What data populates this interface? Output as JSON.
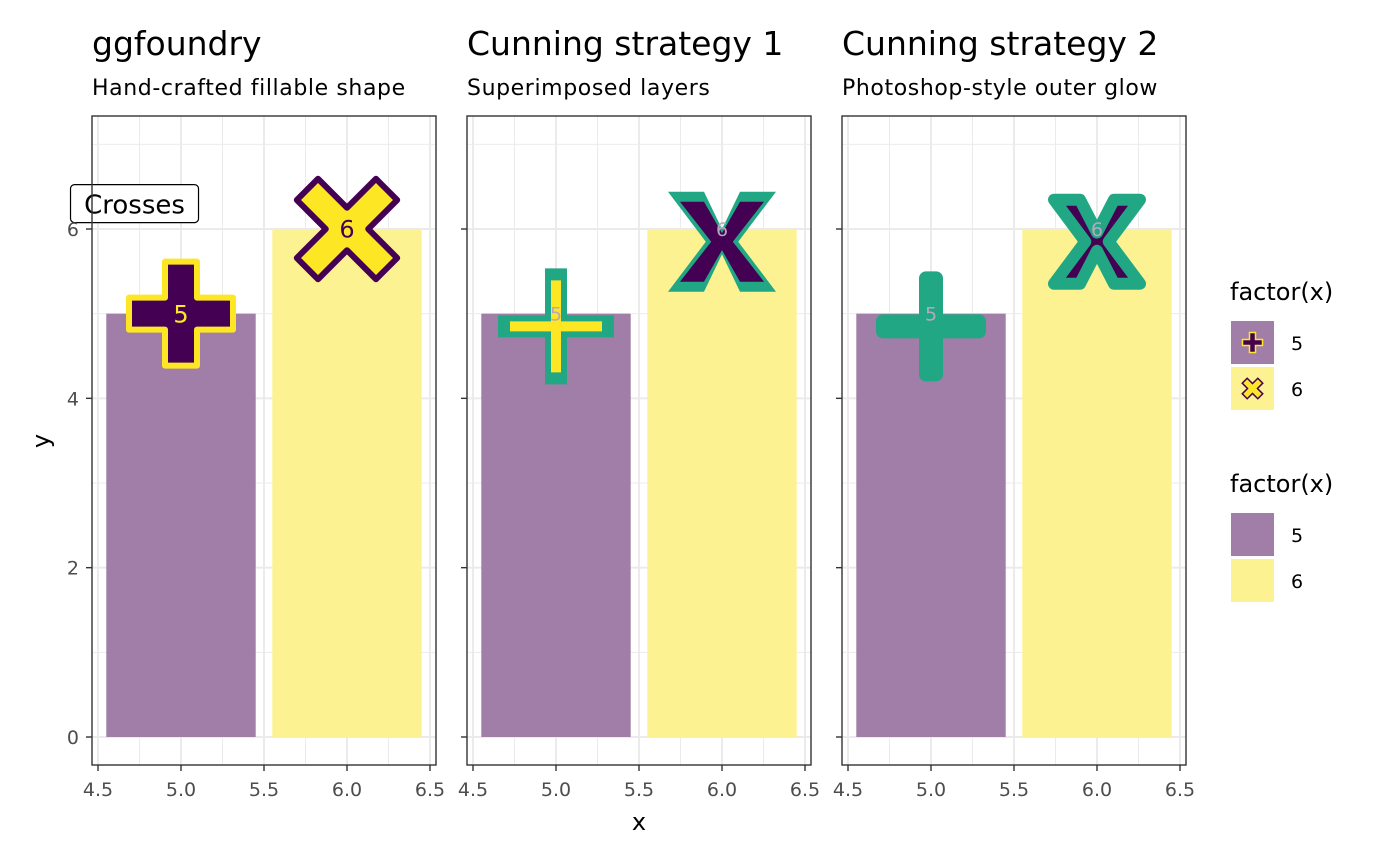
{
  "chart_data": [
    {
      "type": "bar",
      "title": "ggfoundry",
      "subtitle": "Hand-crafted fillable shape",
      "categories": [
        "5",
        "6"
      ],
      "x": [
        5,
        6
      ],
      "values": [
        5,
        6
      ],
      "point_labels": [
        "5",
        "6"
      ],
      "annotation": "Crosses",
      "xlim": [
        4.5,
        6.5
      ],
      "ylim": [
        0,
        7
      ],
      "xticks": [
        "4.5",
        "5.0",
        "5.5",
        "6.0",
        "6.5"
      ],
      "yticks": [
        "0",
        "2",
        "4",
        "6"
      ],
      "style": "fillable-outline"
    },
    {
      "type": "bar",
      "title": "Cunning strategy 1",
      "subtitle": "Superimposed layers",
      "categories": [
        "5",
        "6"
      ],
      "x": [
        5,
        6
      ],
      "values": [
        5,
        6
      ],
      "point_labels": [
        "5",
        "6"
      ],
      "xlim": [
        4.5,
        6.5
      ],
      "ylim": [
        0,
        7
      ],
      "xticks": [
        "4.5",
        "5.0",
        "5.5",
        "6.0",
        "6.5"
      ],
      "style": "superimposed"
    },
    {
      "type": "bar",
      "title": "Cunning strategy 2",
      "subtitle": "Photoshop-style outer glow",
      "categories": [
        "5",
        "6"
      ],
      "x": [
        5,
        6
      ],
      "values": [
        5,
        6
      ],
      "point_labels": [
        "5",
        "6"
      ],
      "xlim": [
        4.5,
        6.5
      ],
      "ylim": [
        0,
        7
      ],
      "xticks": [
        "4.5",
        "5.0",
        "5.5",
        "6.0",
        "6.5"
      ],
      "style": "glow"
    }
  ],
  "axes": {
    "xlabel": "x",
    "ylabel": "y"
  },
  "legends": [
    {
      "title": "factor(x)",
      "kind": "shape",
      "items": [
        "5",
        "6"
      ]
    },
    {
      "title": "factor(x)",
      "kind": "fill",
      "items": [
        "5",
        "6"
      ]
    }
  ],
  "colors": {
    "purple": "#440154",
    "yellow": "#FDE725",
    "teal": "#21A784",
    "bar_purple": "#A07EA8",
    "bar_yellow": "#FDF291",
    "grid": "#EBEBEB",
    "border": "#333333",
    "tick_label": "#4D4D4D"
  }
}
